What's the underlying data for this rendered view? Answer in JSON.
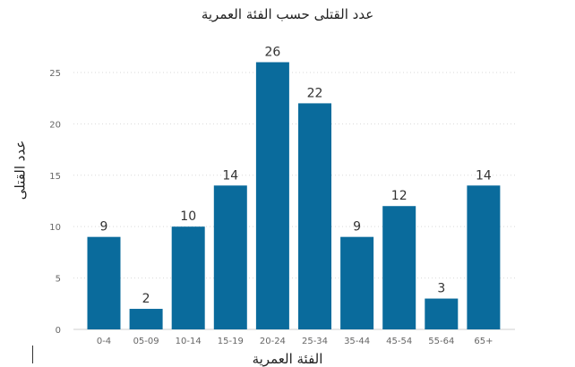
{
  "chart_data": {
    "type": "bar",
    "title": "عدد القتلى حسب الفئة العمرية",
    "xlabel": "الفئة العمرية",
    "ylabel": "عدد القتلى",
    "categories": [
      "0-4",
      "05-09",
      "10-14",
      "15-19",
      "20-24",
      "25-34",
      "35-44",
      "45-54",
      "55-64",
      "65+"
    ],
    "values": [
      9,
      2,
      10,
      14,
      26,
      22,
      9,
      12,
      3,
      14
    ],
    "ylim": [
      0,
      27
    ],
    "yticks": [
      0,
      5,
      10,
      15,
      20,
      25
    ],
    "grid": true,
    "bar_color": "#0a6b9c"
  }
}
